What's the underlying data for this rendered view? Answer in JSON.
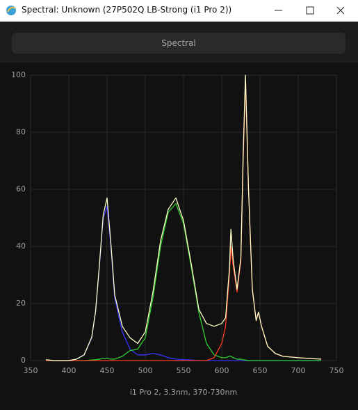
{
  "window": {
    "title": "Spectral: Unknown (27P502Q LB-Strong (i1 Pro 2))",
    "tab": "Spectral"
  },
  "chart_data": {
    "type": "line",
    "xlabel": "i1 Pro 2, 3.3nm, 370-730nm",
    "x": [
      370,
      380,
      390,
      400,
      410,
      420,
      430,
      435,
      440,
      445,
      450,
      455,
      460,
      470,
      480,
      490,
      500,
      510,
      520,
      530,
      540,
      550,
      560,
      570,
      580,
      590,
      600,
      605,
      610,
      612,
      615,
      620,
      625,
      628,
      631,
      635,
      640,
      645,
      648,
      652,
      660,
      670,
      680,
      700,
      730
    ],
    "series": [
      {
        "color": "#3b34ff",
        "values": [
          0.3,
          0,
          0,
          0,
          0.5,
          2,
          8,
          17,
          33,
          50,
          54,
          40,
          22,
          10,
          4,
          2,
          2,
          2.5,
          2,
          1,
          0.5,
          0.3,
          0.2,
          0,
          0,
          0,
          0,
          0,
          0,
          0,
          0,
          0,
          0,
          0,
          0,
          0,
          0,
          0,
          0,
          0,
          0,
          0,
          0,
          0,
          0
        ]
      },
      {
        "color": "#2fd02f",
        "values": [
          0,
          0,
          0,
          0,
          0,
          0,
          0.2,
          0.3,
          0.5,
          0.8,
          0.8,
          0.5,
          0.5,
          1.5,
          3.5,
          4,
          8,
          22,
          40,
          52,
          55,
          48,
          33,
          17,
          6,
          2,
          1,
          1,
          1.5,
          1.5,
          1,
          0.5,
          0.5,
          0.3,
          0.2,
          0,
          0,
          0,
          0,
          0,
          0,
          0,
          0,
          0,
          0
        ]
      },
      {
        "color": "#ff3a22",
        "values": [
          0,
          0,
          0,
          0,
          0,
          0,
          0,
          0,
          0,
          0,
          0,
          0,
          0,
          0,
          0,
          0,
          0,
          0,
          0,
          0,
          0,
          0,
          0,
          0,
          0,
          1,
          6,
          12,
          30,
          40,
          33,
          24,
          35,
          70,
          98,
          60,
          25,
          14,
          17,
          12,
          5,
          2.5,
          1.5,
          1,
          0.5
        ]
      },
      {
        "color": "#ffffc8",
        "values": [
          0.3,
          0,
          0,
          0,
          0.5,
          2,
          8.2,
          17.3,
          33.5,
          51,
          57,
          41,
          23,
          12,
          8,
          6,
          10,
          24,
          42,
          53,
          57,
          49,
          34,
          18,
          13,
          12,
          13,
          15,
          32,
          46,
          35,
          25,
          36,
          72,
          100,
          60,
          25,
          14,
          17,
          12,
          5,
          2.5,
          1.5,
          1,
          0.5
        ]
      }
    ],
    "xlim": [
      350,
      750
    ],
    "xticks": [
      350,
      400,
      450,
      500,
      550,
      600,
      650,
      700,
      750
    ],
    "ylim": [
      0,
      100
    ],
    "yticks": [
      0,
      20,
      40,
      60,
      80,
      100
    ],
    "grid": true
  }
}
